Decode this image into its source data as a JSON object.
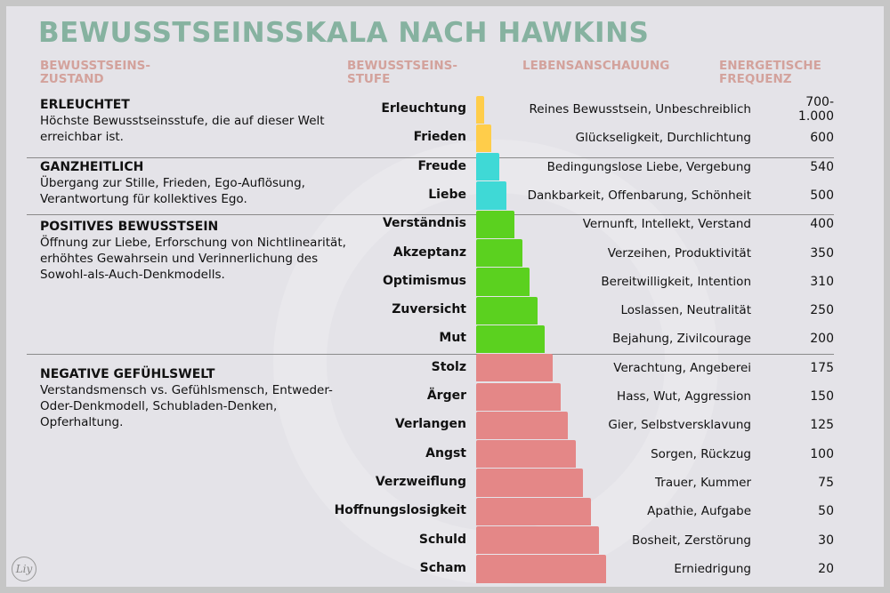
{
  "title": "BEWUSSTSEINSSKALA NACH HAWKINS",
  "headers": {
    "zustand": "BEWUSSTSEINS-\nZUSTAND",
    "stufe": "BEWUSSTSEINS-\nSTUFE",
    "anschauung": "LEBENSANSCHAUUNG",
    "frequenz": "ENERGETISCHE\nFREQUENZ"
  },
  "sections": [
    {
      "name": "ERLEUCHTET",
      "text": "Höchste Bewusstseinsstufe, die auf dieser Welt erreichbar ist."
    },
    {
      "name": "GANZHEITLICH",
      "text": "Übergang zur Stille, Frieden, Ego-Auflösung, Verantwortung für kollektives Ego."
    },
    {
      "name": "POSITIVES BEWUSSTSEIN",
      "text": "Öffnung zur Liebe, Erforschung von Nichtlinearität, erhöhtes Gewahrsein und Verinnerlichung des Sowohl-als-Auch-Denkmodells."
    },
    {
      "name": "NEGATIVE GEFÜHLSWELT",
      "text": "Verstandsmensch vs. Gefühlsmensch, Entweder-Oder-Denkmodell, Schubladen-Denken, Opferhaltung."
    }
  ],
  "colors": {
    "erleuchtet": "#ffcd4a",
    "ganzheitlich": "#3fd9d6",
    "positiv": "#5bd11f",
    "negativ": "#e48787",
    "title": "#86b2a0",
    "header": "#d3a29c"
  },
  "levels": [
    {
      "stufe": "Erleuchtung",
      "anschauung": "Reines Bewusstsein, Unbeschreiblich",
      "frequenz": "700-\n1.000",
      "group": "erleuchtet"
    },
    {
      "stufe": "Frieden",
      "anschauung": "Glückseligkeit, Durchlichtung",
      "frequenz": "600",
      "group": "erleuchtet"
    },
    {
      "stufe": "Freude",
      "anschauung": "Bedingungslose Liebe, Vergebung",
      "frequenz": "540",
      "group": "ganzheitlich"
    },
    {
      "stufe": "Liebe",
      "anschauung": "Dankbarkeit, Offenbarung, Schönheit",
      "frequenz": "500",
      "group": "ganzheitlich"
    },
    {
      "stufe": "Verständnis",
      "anschauung": "Vernunft, Intellekt, Verstand",
      "frequenz": "400",
      "group": "positiv"
    },
    {
      "stufe": "Akzeptanz",
      "anschauung": "Verzeihen, Produktivität",
      "frequenz": "350",
      "group": "positiv"
    },
    {
      "stufe": "Optimismus",
      "anschauung": "Bereitwilligkeit, Intention",
      "frequenz": "310",
      "group": "positiv"
    },
    {
      "stufe": "Zuversicht",
      "anschauung": "Loslassen, Neutralität",
      "frequenz": "250",
      "group": "positiv"
    },
    {
      "stufe": "Mut",
      "anschauung": "Bejahung, Zivilcourage",
      "frequenz": "200",
      "group": "positiv"
    },
    {
      "stufe": "Stolz",
      "anschauung": "Verachtung, Angeberei",
      "frequenz": "175",
      "group": "negativ"
    },
    {
      "stufe": "Ärger",
      "anschauung": "Hass, Wut, Aggression",
      "frequenz": "150",
      "group": "negativ"
    },
    {
      "stufe": "Verlangen",
      "anschauung": "Gier, Selbstversklavung",
      "frequenz": "125",
      "group": "negativ"
    },
    {
      "stufe": "Angst",
      "anschauung": "Sorgen, Rückzug",
      "frequenz": "100",
      "group": "negativ"
    },
    {
      "stufe": "Verzweiflung",
      "anschauung": "Trauer, Kummer",
      "frequenz": "75",
      "group": "negativ"
    },
    {
      "stufe": "Hoffnungslosigkeit",
      "anschauung": "Apathie, Aufgabe",
      "frequenz": "50",
      "group": "negativ"
    },
    {
      "stufe": "Schuld",
      "anschauung": "Bosheit, Zerstörung",
      "frequenz": "30",
      "group": "negativ"
    },
    {
      "stufe": "Scham",
      "anschauung": "Erniedrigung",
      "frequenz": "20",
      "group": "negativ"
    }
  ],
  "logo": "Liy"
}
